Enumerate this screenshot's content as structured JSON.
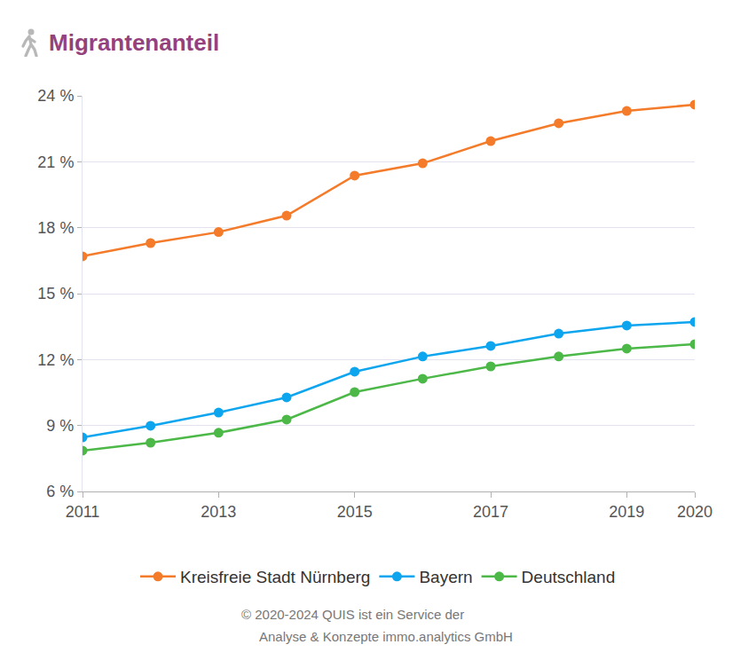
{
  "chart_data": {
    "type": "line",
    "title": "Migrantenanteil",
    "x": [
      2011,
      2012,
      2013,
      2014,
      2015,
      2016,
      2017,
      2018,
      2019,
      2020
    ],
    "series": [
      {
        "name": "Kreisfreie Stadt Nürnberg",
        "color": "#f47b2a",
        "values": [
          16.7,
          17.3,
          17.8,
          18.55,
          20.37,
          20.93,
          21.94,
          22.75,
          23.31,
          23.6
        ]
      },
      {
        "name": "Bayern",
        "color": "#0ea5ef",
        "values": [
          8.46,
          8.99,
          9.59,
          10.28,
          11.45,
          12.14,
          12.62,
          13.18,
          13.55,
          13.71
        ]
      },
      {
        "name": "Deutschland",
        "color": "#4cb848",
        "values": [
          7.86,
          8.22,
          8.67,
          9.27,
          10.52,
          11.13,
          11.69,
          12.14,
          12.5,
          12.7
        ]
      }
    ],
    "xlim": [
      2011,
      2020
    ],
    "xticks": [
      2011,
      2013,
      2015,
      2017,
      2019,
      2020
    ],
    "ylim": [
      6,
      24
    ],
    "yticks": [
      {
        "value": 6,
        "label": "6 %"
      },
      {
        "value": 9,
        "label": "9 %"
      },
      {
        "value": 12,
        "label": "12 %"
      },
      {
        "value": 15,
        "label": "15 %"
      },
      {
        "value": 18,
        "label": "18 %"
      },
      {
        "value": 21,
        "label": "21 %"
      },
      {
        "value": 24,
        "label": "24 %"
      }
    ],
    "grid": true,
    "legend": "bottom",
    "marker": "circle",
    "annotations": [
      "© 2020-2024 QUIS ist ein Service der",
      "Analyse & Konzepte immo.analytics GmbH"
    ]
  }
}
